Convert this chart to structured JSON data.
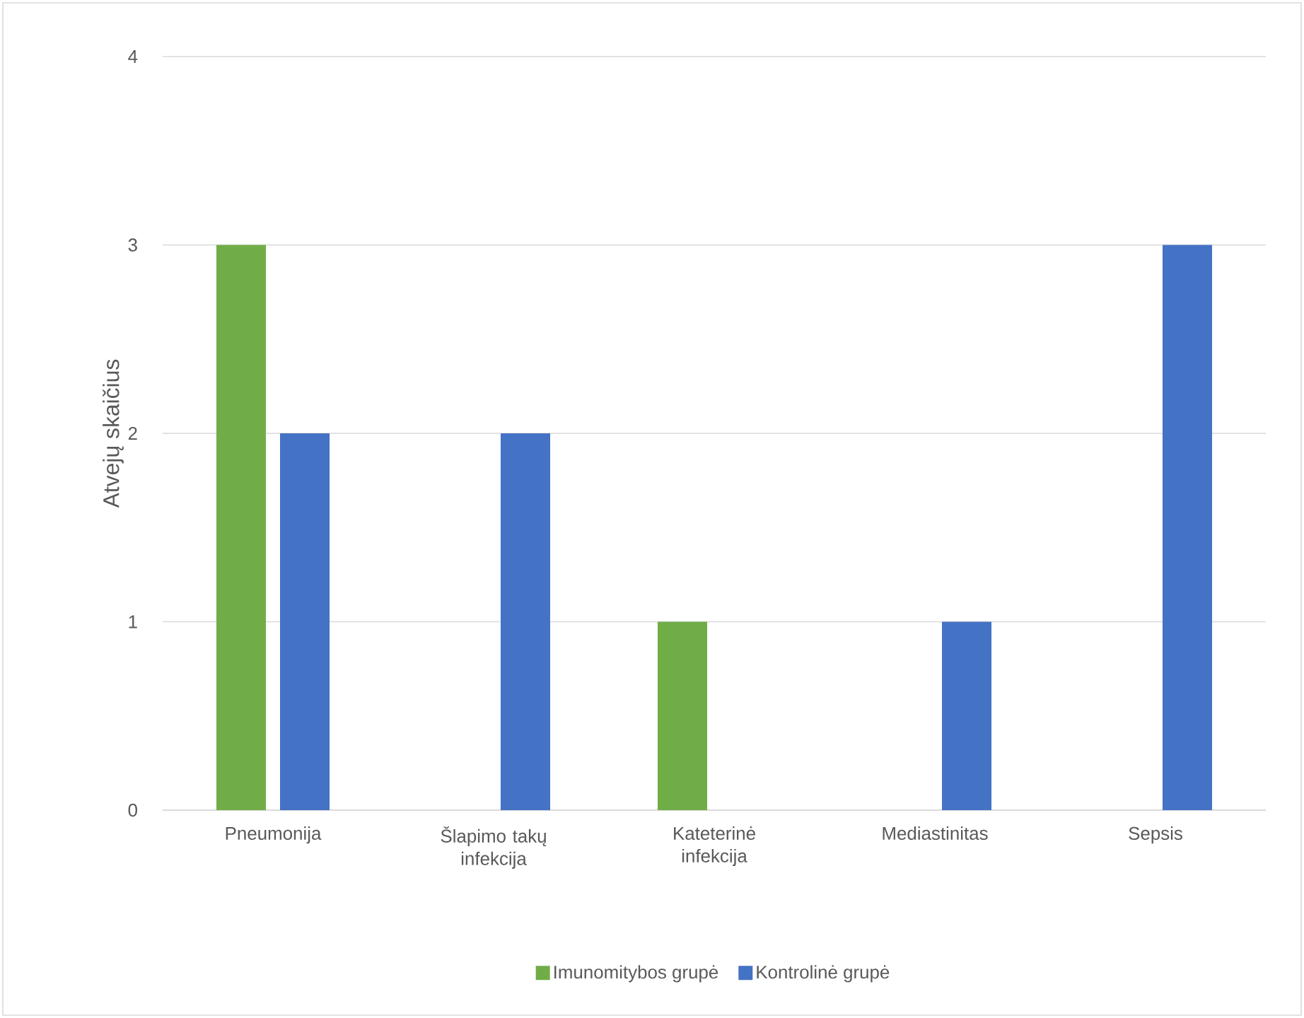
{
  "chart_data": {
    "type": "bar",
    "ylabel": "Atvejų skaičius",
    "categories": [
      "Pneumonija",
      "Šlapimo takų infekcija",
      "Kateterinė infekcija",
      "Mediastinitas",
      "Sepsis"
    ],
    "series": [
      {
        "name": "Imunomitybos grupė",
        "color": "#70ad47",
        "values": [
          3,
          0,
          1,
          0,
          0
        ]
      },
      {
        "name": "Kontrolinė grupė",
        "color": "#4472c4",
        "values": [
          2,
          2,
          0,
          1,
          3
        ]
      }
    ],
    "ylim": [
      0,
      4
    ],
    "yticks": [
      0,
      1,
      2,
      3,
      4
    ],
    "grid": "y",
    "legend": "bottom"
  }
}
